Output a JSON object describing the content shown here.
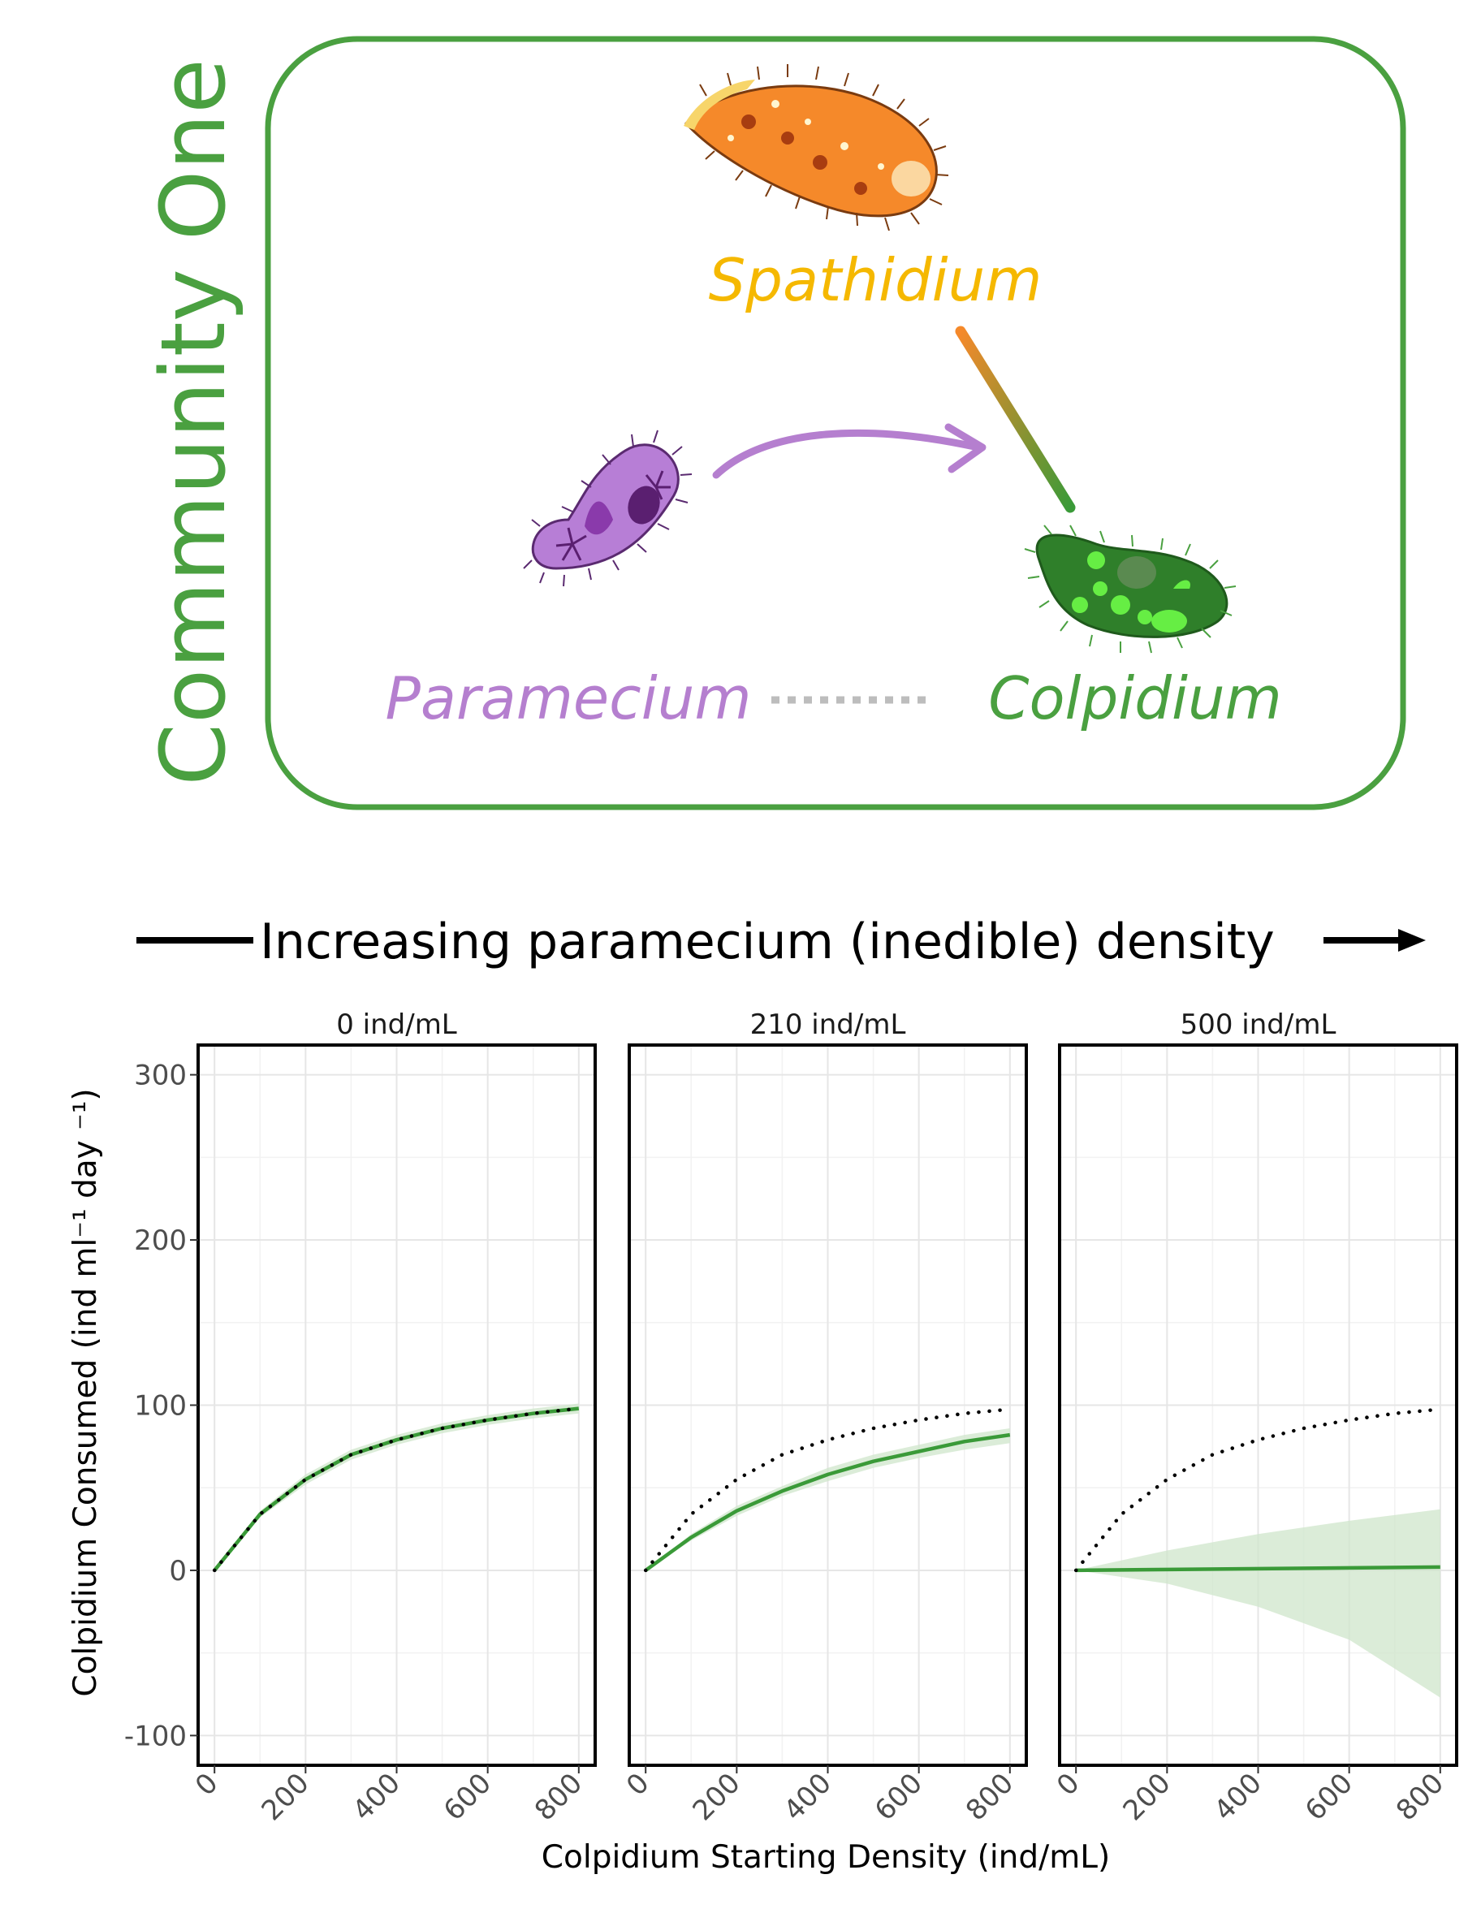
{
  "diagram": {
    "community_label": "Community One",
    "species": [
      {
        "id": "spathidium",
        "name": "Spathidium",
        "color": "#f5b800",
        "body_color": "#f5892a"
      },
      {
        "id": "paramecium",
        "name": "Paramecium",
        "color": "#b57fcf",
        "body_color": "#b77ed6"
      },
      {
        "id": "colpidium",
        "name": "Colpidium",
        "color": "#4aa040",
        "body_color": "#3a9a38"
      }
    ],
    "frame_color": "#4aa040",
    "predation_link_gradient": [
      "#f5892a",
      "#3a9a38"
    ],
    "effect_arrow_color": "#b57fcf",
    "no_interaction_line_color": "#bdbdbd",
    "banner_text": "Increasing paramecium (inedible) density"
  },
  "chart_data": {
    "type": "line",
    "xlabel": "Colpidium Starting Density (ind/mL)",
    "ylabel": "Colpidium Consumed (ind ml⁻¹ day ⁻¹)",
    "xlim": [
      0,
      800
    ],
    "ylim": [
      -100,
      300
    ],
    "x_ticks": [
      0,
      200,
      400,
      600,
      800
    ],
    "y_ticks": [
      300,
      200,
      100,
      0,
      -100
    ],
    "grid": true,
    "fit_color": "#3a9a38",
    "ribbon_color": "#cfe5cb",
    "reference_color": "#000000",
    "panels": [
      {
        "title": "0 ind/mL",
        "series": [
          {
            "style": "solid",
            "x": [
              0,
              100,
              200,
              300,
              400,
              500,
              600,
              700,
              800
            ],
            "y": [
              0,
              34,
              55,
              70,
              79,
              86,
              91,
              95,
              98
            ]
          },
          {
            "style": "dotted",
            "x": [
              0,
              100,
              200,
              300,
              400,
              500,
              600,
              700,
              800
            ],
            "y": [
              0,
              34,
              55,
              70,
              79,
              86,
              91,
              95,
              98
            ]
          }
        ],
        "ribbon": {
          "x": [
            0,
            100,
            200,
            300,
            400,
            500,
            600,
            700,
            800
          ],
          "lower": [
            0,
            32,
            52,
            67,
            76,
            83,
            88,
            92,
            95
          ],
          "upper": [
            0,
            36,
            58,
            73,
            82,
            89,
            94,
            98,
            101
          ]
        }
      },
      {
        "title": "210 ind/mL",
        "series": [
          {
            "style": "solid",
            "x": [
              0,
              100,
              200,
              300,
              400,
              500,
              600,
              700,
              800
            ],
            "y": [
              0,
              20,
              36,
              48,
              58,
              66,
              72,
              78,
              82
            ]
          },
          {
            "style": "dotted",
            "x": [
              0,
              100,
              200,
              300,
              400,
              500,
              600,
              700,
              780
            ],
            "y": [
              0,
              34,
              55,
              70,
              79,
              86,
              91,
              95,
              97
            ]
          }
        ],
        "ribbon": {
          "x": [
            0,
            100,
            200,
            300,
            400,
            500,
            600,
            700,
            800
          ],
          "lower": [
            0,
            18,
            33,
            45,
            54,
            62,
            68,
            73,
            77
          ],
          "upper": [
            0,
            22,
            39,
            51,
            62,
            70,
            76,
            82,
            86
          ]
        }
      },
      {
        "title": "500 ind/mL",
        "series": [
          {
            "style": "solid",
            "x": [
              0,
              800
            ],
            "y": [
              0,
              2
            ]
          },
          {
            "style": "dotted",
            "x": [
              0,
              100,
              200,
              300,
              400,
              500,
              600,
              700,
              780
            ],
            "y": [
              0,
              34,
              55,
              70,
              79,
              86,
              91,
              95,
              97
            ]
          }
        ],
        "ribbon": {
          "x": [
            0,
            200,
            400,
            600,
            800
          ],
          "lower": [
            0,
            -8,
            -22,
            -42,
            -77
          ],
          "upper": [
            0,
            12,
            22,
            30,
            37
          ]
        }
      }
    ]
  }
}
